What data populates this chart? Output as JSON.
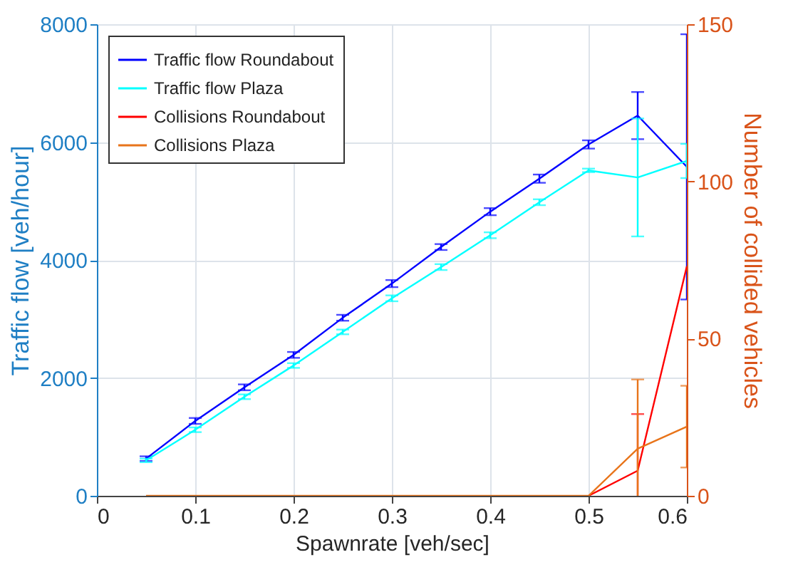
{
  "chart_data": {
    "type": "line",
    "xlabel": "Spawnrate [veh/sec]",
    "ylabel": "Traffic flow [veh/hour]",
    "y2label": "Number of collided vehicles",
    "x": [
      0.05,
      0.1,
      0.15,
      0.2,
      0.25,
      0.3,
      0.35,
      0.4,
      0.45,
      0.5,
      0.55,
      0.6
    ],
    "series": [
      {
        "name": "Traffic flow Roundabout",
        "color": "#0000ff",
        "values": [
          630,
          1270,
          1840,
          2390,
          3020,
          3600,
          4220,
          4820,
          5380,
          5960,
          6450,
          5580
        ],
        "errors": [
          40,
          50,
          50,
          50,
          50,
          60,
          50,
          60,
          70,
          70,
          400,
          2250
        ]
      },
      {
        "name": "Traffic flow Plaza",
        "color": "#00ffff",
        "values": [
          600,
          1120,
          1680,
          2210,
          2780,
          3350,
          3880,
          4420,
          4980,
          5520,
          5400,
          5680
        ],
        "errors": [
          30,
          40,
          40,
          40,
          40,
          50,
          50,
          50,
          50,
          30,
          1000,
          290
        ]
      },
      {
        "name": "Collisions Roundabout",
        "color": "#ff0000",
        "axis": "y2",
        "values": [
          null,
          null,
          null,
          null,
          null,
          null,
          null,
          null,
          null,
          0,
          8,
          73
        ],
        "errors": [
          null,
          null,
          null,
          null,
          null,
          null,
          null,
          null,
          null,
          null,
          18,
          null
        ]
      },
      {
        "name": "Collisions Plaza",
        "color": "#e8741a",
        "axis": "y2",
        "values": [
          0,
          0,
          0,
          0,
          0,
          0,
          0,
          0,
          0,
          0,
          15,
          22
        ],
        "errors": [
          null,
          null,
          null,
          null,
          null,
          null,
          null,
          null,
          null,
          null,
          22,
          13
        ]
      }
    ],
    "xlim": [
      0,
      0.6
    ],
    "xticks": [
      0,
      0.1,
      0.2,
      0.3,
      0.4,
      0.5,
      0.6
    ],
    "ylim": [
      0,
      8000
    ],
    "yticks": [
      0,
      2000,
      4000,
      6000,
      8000
    ],
    "y2lim": [
      0,
      150
    ],
    "y2ticks": [
      0,
      50,
      100,
      150
    ],
    "grid": true,
    "legend": "top left"
  }
}
